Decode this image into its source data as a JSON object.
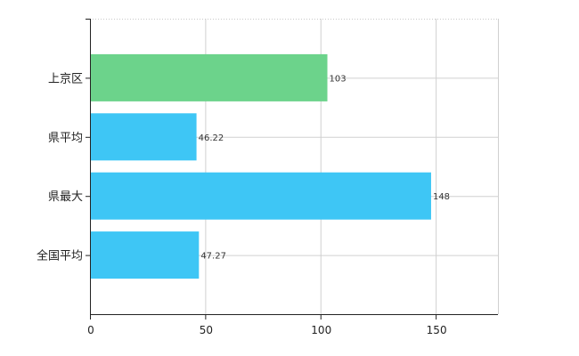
{
  "chart_data": {
    "type": "bar",
    "orientation": "horizontal",
    "categories": [
      "上京区",
      "県平均",
      "県最大",
      "全国平均"
    ],
    "values": [
      103,
      46.22,
      148,
      47.27
    ],
    "value_labels": [
      "103",
      "46.22",
      "148",
      "47.27"
    ],
    "xlim": [
      0,
      177
    ],
    "x_ticks": [
      0,
      50,
      100,
      150
    ],
    "x_tick_labels": [
      "0",
      "50",
      "100",
      "150"
    ],
    "grid": true,
    "colors": {
      "highlight": "#6cd38b",
      "default": "#3ec6f5",
      "highlight_index": 0
    }
  }
}
